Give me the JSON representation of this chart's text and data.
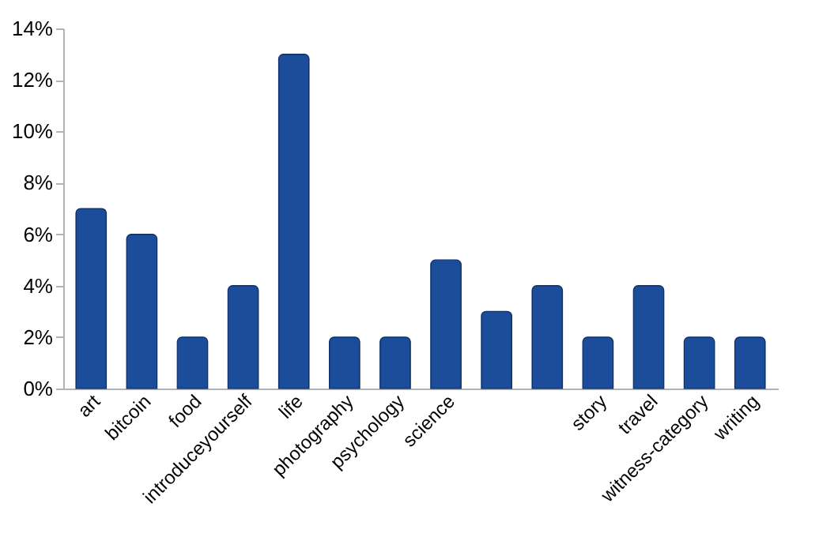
{
  "chart_data": {
    "type": "bar",
    "categories": [
      "art",
      "bitcoin",
      "food",
      "introduceyourself",
      "life",
      "photography",
      "psychology",
      "science",
      null,
      null,
      "story",
      "travel",
      "witness-category",
      "writing"
    ],
    "values": [
      7,
      6,
      2,
      4,
      13,
      2,
      2,
      5,
      3,
      4,
      2,
      4,
      2,
      2
    ],
    "color": "#1c4d9a",
    "ylim": [
      0,
      14
    ],
    "yticks": [
      {
        "value": 0,
        "label": "0%"
      },
      {
        "value": 2,
        "label": "2%"
      },
      {
        "value": 4,
        "label": "4%"
      },
      {
        "value": 6,
        "label": "6%"
      },
      {
        "value": 8,
        "label": "8%"
      },
      {
        "value": 10,
        "label": "10%"
      },
      {
        "value": 12,
        "label": "12%"
      },
      {
        "value": 14,
        "label": "14%"
      }
    ],
    "grid": false
  }
}
